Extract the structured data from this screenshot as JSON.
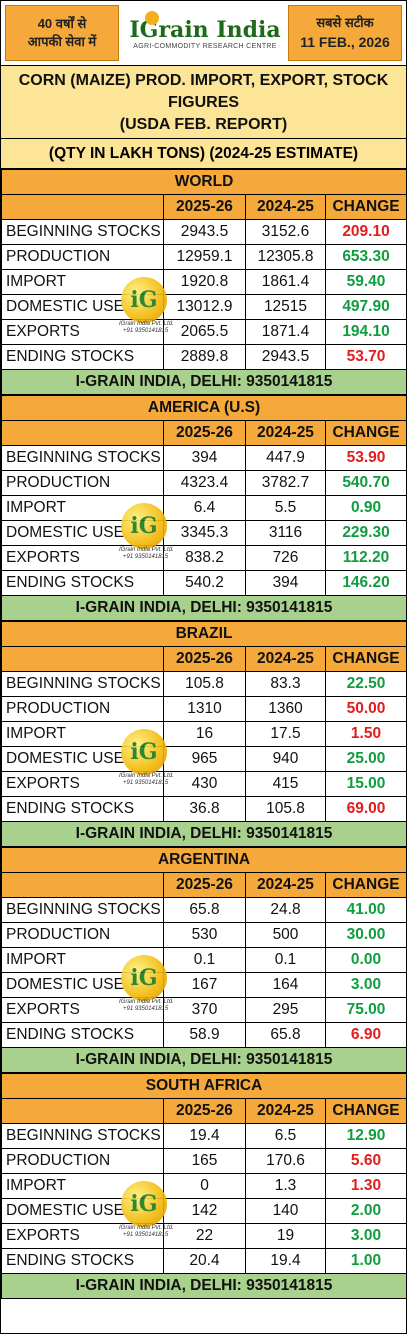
{
  "header": {
    "left_line1": "40 वर्षों से",
    "left_line2": "आपकी सेवा में",
    "brand": "IGrain India",
    "brand_sub": "AGRI-COMMODITY RESEARCH CENTRE",
    "right_line1": "सबसे सटीक",
    "date": "11 FEB., 2026"
  },
  "title": {
    "line1": "CORN (MAIZE) PROD. IMPORT, EXPORT, STOCK FIGURES",
    "line2": "(USDA FEB. REPORT)",
    "qty": "(QTY IN LAKH TONS) (2024-25 ESTIMATE)"
  },
  "columns": [
    "2025-26",
    "2024-25",
    "CHANGE"
  ],
  "watermark": {
    "logo": "iG",
    "text1": "IGrain India Pvt. Ltd.",
    "text2": "+91 9350141815"
  },
  "footer": "I-GRAIN INDIA, DELHI: 9350141815",
  "colors": {
    "orange": "#f5a93a",
    "yellow": "#fde597",
    "green_band": "#a9d18e",
    "up": "#0f9d3f",
    "down": "#e11d1d"
  },
  "sections": [
    {
      "name": "WORLD",
      "rows": [
        {
          "label": "BEGINNING STOCKS",
          "a": "2943.5",
          "b": "3152.6",
          "c": "209.10",
          "dir": "down"
        },
        {
          "label": "PRODUCTION",
          "a": "12959.1",
          "b": "12305.8",
          "c": "653.30",
          "dir": "up"
        },
        {
          "label": "IMPORT",
          "a": "1920.8",
          "b": "1861.4",
          "c": "59.40",
          "dir": "up"
        },
        {
          "label": "DOMESTIC USE",
          "a": "13012.9",
          "b": "12515",
          "c": "497.90",
          "dir": "up"
        },
        {
          "label": "EXPORTS",
          "a": "2065.5",
          "b": "1871.4",
          "c": "194.10",
          "dir": "up"
        },
        {
          "label": "ENDING STOCKS",
          "a": "2889.8",
          "b": "2943.5",
          "c": "53.70",
          "dir": "down"
        }
      ]
    },
    {
      "name": "AMERICA (U.S)",
      "rows": [
        {
          "label": "BEGINNING STOCKS",
          "a": "394",
          "b": "447.9",
          "c": "53.90",
          "dir": "down"
        },
        {
          "label": "PRODUCTION",
          "a": "4323.4",
          "b": "3782.7",
          "c": "540.70",
          "dir": "up"
        },
        {
          "label": "IMPORT",
          "a": "6.4",
          "b": "5.5",
          "c": "0.90",
          "dir": "up"
        },
        {
          "label": "DOMESTIC USE",
          "a": "3345.3",
          "b": "3116",
          "c": "229.30",
          "dir": "up"
        },
        {
          "label": "EXPORTS",
          "a": "838.2",
          "b": "726",
          "c": "112.20",
          "dir": "up"
        },
        {
          "label": "ENDING STOCKS",
          "a": "540.2",
          "b": "394",
          "c": "146.20",
          "dir": "up"
        }
      ]
    },
    {
      "name": "BRAZIL",
      "rows": [
        {
          "label": "BEGINNING STOCKS",
          "a": "105.8",
          "b": "83.3",
          "c": "22.50",
          "dir": "up"
        },
        {
          "label": "PRODUCTION",
          "a": "1310",
          "b": "1360",
          "c": "50.00",
          "dir": "down"
        },
        {
          "label": "IMPORT",
          "a": "16",
          "b": "17.5",
          "c": "1.50",
          "dir": "down"
        },
        {
          "label": "DOMESTIC USE",
          "a": "965",
          "b": "940",
          "c": "25.00",
          "dir": "up"
        },
        {
          "label": "EXPORTS",
          "a": "430",
          "b": "415",
          "c": "15.00",
          "dir": "up"
        },
        {
          "label": "ENDING STOCKS",
          "a": "36.8",
          "b": "105.8",
          "c": "69.00",
          "dir": "down"
        }
      ]
    },
    {
      "name": "ARGENTINA",
      "rows": [
        {
          "label": "BEGINNING STOCKS",
          "a": "65.8",
          "b": "24.8",
          "c": "41.00",
          "dir": "up"
        },
        {
          "label": "PRODUCTION",
          "a": "530",
          "b": "500",
          "c": "30.00",
          "dir": "up"
        },
        {
          "label": "IMPORT",
          "a": "0.1",
          "b": "0.1",
          "c": "0.00",
          "dir": "up"
        },
        {
          "label": "DOMESTIC USE",
          "a": "167",
          "b": "164",
          "c": "3.00",
          "dir": "up"
        },
        {
          "label": "EXPORTS",
          "a": "370",
          "b": "295",
          "c": "75.00",
          "dir": "up"
        },
        {
          "label": "ENDING STOCKS",
          "a": "58.9",
          "b": "65.8",
          "c": "6.90",
          "dir": "down"
        }
      ]
    },
    {
      "name": "SOUTH AFRICA",
      "rows": [
        {
          "label": "BEGINNING STOCKS",
          "a": "19.4",
          "b": "6.5",
          "c": "12.90",
          "dir": "up"
        },
        {
          "label": "PRODUCTION",
          "a": "165",
          "b": "170.6",
          "c": "5.60",
          "dir": "down"
        },
        {
          "label": "IMPORT",
          "a": "0",
          "b": "1.3",
          "c": "1.30",
          "dir": "down"
        },
        {
          "label": "DOMESTIC USE",
          "a": "142",
          "b": "140",
          "c": "2.00",
          "dir": "up"
        },
        {
          "label": "EXPORTS",
          "a": "22",
          "b": "19",
          "c": "3.00",
          "dir": "up"
        },
        {
          "label": "ENDING STOCKS",
          "a": "20.4",
          "b": "19.4",
          "c": "1.00",
          "dir": "up"
        }
      ]
    }
  ]
}
